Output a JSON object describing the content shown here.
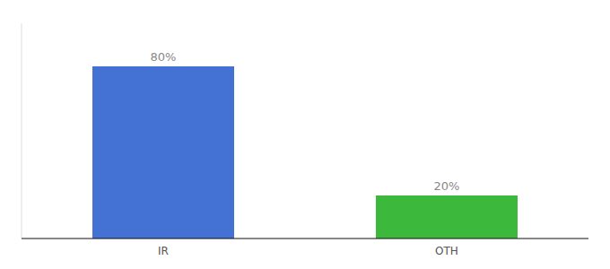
{
  "chart_data": {
    "type": "bar",
    "categories": [
      "IR",
      "OTH"
    ],
    "values": [
      80,
      20
    ],
    "value_labels": [
      "80%",
      "20%"
    ],
    "colors": [
      "#4472d4",
      "#3cb93c"
    ],
    "ylim": [
      0,
      100
    ],
    "data_labels": true,
    "tick_labels": "x"
  }
}
